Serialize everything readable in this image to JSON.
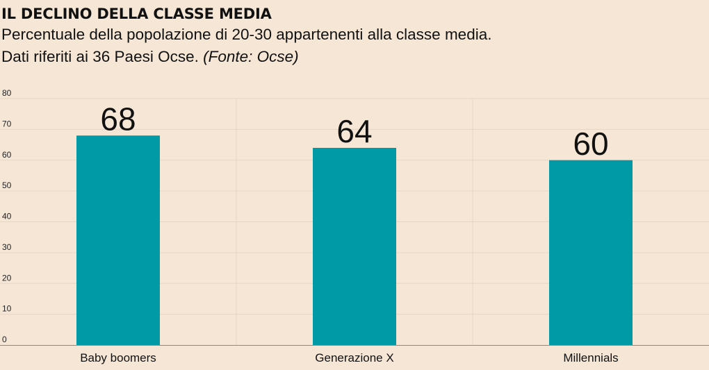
{
  "header": {
    "title": "IL DECLINO DELLA CLASSE MEDIA",
    "subtitle_line1": "Percentuale della popolazione di 20-30 appartenenti alla classe media.",
    "subtitle_line2": "Dati riferiti ai 36 Paesi Ocse.",
    "source": "(Fonte: Ocse)"
  },
  "chart_data": {
    "type": "bar",
    "title": "IL DECLINO DELLA CLASSE MEDIA",
    "subtitle": "Percentuale della popolazione di 20-30 appartenenti alla classe media. Dati riferiti ai 36 Paesi Ocse. (Fonte: Ocse)",
    "categories": [
      "Baby boomers",
      "Generazione X",
      "Millennials"
    ],
    "values": [
      68,
      64,
      60
    ],
    "data_labels": [
      "68",
      "64",
      "60"
    ],
    "xlabel": "",
    "ylabel": "",
    "ylim": [
      0,
      80
    ],
    "yticks": [
      0,
      10,
      20,
      30,
      40,
      50,
      60,
      70,
      80
    ],
    "grid": true,
    "bar_color": "#009aa6",
    "background_color": "#f5e6d6",
    "grid_color": "#e6d5c4"
  }
}
